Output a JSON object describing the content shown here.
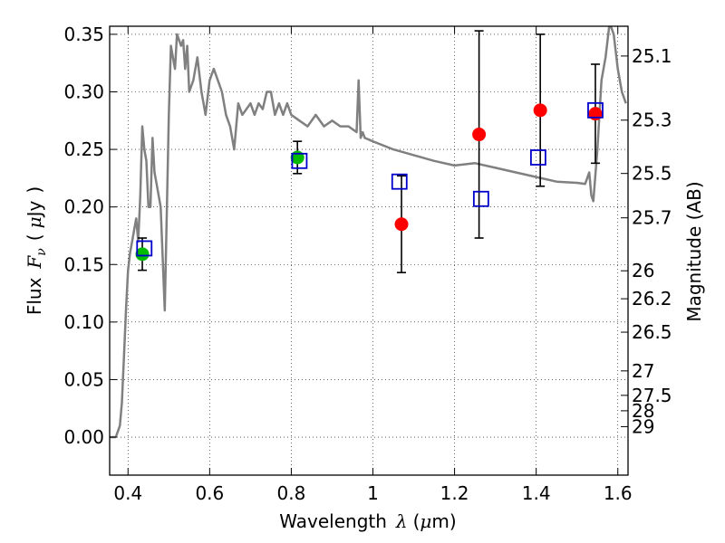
{
  "chart_data": {
    "type": "scatter",
    "xlabel": {
      "text": "Wavelength",
      "symbol": "λ",
      "unit_open": "(",
      "unit_mu": "μ",
      "unit_rest": "m)"
    },
    "ylabel": {
      "text": "Flux",
      "symbol": "F",
      "subscript": "ν",
      "unit_open": "(",
      "unit_mu": "μ",
      "unit_rest": "Jy",
      "unit_close": ")"
    },
    "y2label": "Magnitude (AB)",
    "xlim": [
      0.355,
      1.625
    ],
    "ylim": [
      -0.033,
      0.357
    ],
    "grid": true,
    "x_ticks": [
      {
        "v": 0.4,
        "label": "0.4"
      },
      {
        "v": 0.6,
        "label": "0.6"
      },
      {
        "v": 0.8,
        "label": "0.8"
      },
      {
        "v": 1.0,
        "label": "1"
      },
      {
        "v": 1.2,
        "label": "1.2"
      },
      {
        "v": 1.4,
        "label": "1.4"
      },
      {
        "v": 1.6,
        "label": "1.6"
      }
    ],
    "y_ticks": [
      {
        "v": 0.0,
        "label": "0.00"
      },
      {
        "v": 0.05,
        "label": "0.05"
      },
      {
        "v": 0.1,
        "label": "0.10"
      },
      {
        "v": 0.15,
        "label": "0.15"
      },
      {
        "v": 0.2,
        "label": "0.20"
      },
      {
        "v": 0.25,
        "label": "0.25"
      },
      {
        "v": 0.3,
        "label": "0.30"
      },
      {
        "v": 0.35,
        "label": "0.35"
      }
    ],
    "y2_ticks": [
      {
        "mag": 25.1,
        "label": "25.1"
      },
      {
        "mag": 25.3,
        "label": "25.3"
      },
      {
        "mag": 25.5,
        "label": "25.5"
      },
      {
        "mag": 25.7,
        "label": "25.7"
      },
      {
        "mag": 26,
        "label": "26"
      },
      {
        "mag": 26.2,
        "label": "26.2"
      },
      {
        "mag": 26.5,
        "label": "26.5"
      },
      {
        "mag": 27,
        "label": "27"
      },
      {
        "mag": 27.5,
        "label": "27.5"
      },
      {
        "mag": 28,
        "label": "28"
      },
      {
        "mag": 29,
        "label": "29"
      }
    ],
    "colors": {
      "model": "#808080",
      "measured": "#ff0000",
      "measured_alt": "#00bb00",
      "synthetic": "#0000cc",
      "errorbar": "#000000"
    },
    "model_spectrum": {
      "x": [
        0.37,
        0.38,
        0.385,
        0.39,
        0.395,
        0.4,
        0.405,
        0.41,
        0.415,
        0.42,
        0.425,
        0.43,
        0.435,
        0.44,
        0.445,
        0.45,
        0.455,
        0.46,
        0.465,
        0.47,
        0.48,
        0.49,
        0.5,
        0.505,
        0.51,
        0.515,
        0.52,
        0.53,
        0.535,
        0.54,
        0.545,
        0.55,
        0.56,
        0.57,
        0.58,
        0.585,
        0.59,
        0.6,
        0.61,
        0.62,
        0.63,
        0.64,
        0.65,
        0.66,
        0.67,
        0.68,
        0.69,
        0.7,
        0.71,
        0.72,
        0.73,
        0.74,
        0.75,
        0.76,
        0.77,
        0.78,
        0.79,
        0.8,
        0.82,
        0.84,
        0.86,
        0.88,
        0.9,
        0.92,
        0.94,
        0.96,
        0.965,
        0.97,
        0.975,
        0.98,
        1.0,
        1.05,
        1.1,
        1.15,
        1.2,
        1.25,
        1.3,
        1.35,
        1.4,
        1.45,
        1.5,
        1.52,
        1.53,
        1.535,
        1.54,
        1.55,
        1.56,
        1.57,
        1.58,
        1.59,
        1.6,
        1.61,
        1.62
      ],
      "y": [
        0.0,
        0.01,
        0.03,
        0.07,
        0.11,
        0.145,
        0.16,
        0.17,
        0.18,
        0.19,
        0.17,
        0.21,
        0.27,
        0.25,
        0.24,
        0.2,
        0.2,
        0.26,
        0.23,
        0.22,
        0.2,
        0.11,
        0.28,
        0.34,
        0.33,
        0.32,
        0.35,
        0.34,
        0.345,
        0.32,
        0.34,
        0.3,
        0.31,
        0.33,
        0.3,
        0.29,
        0.28,
        0.31,
        0.32,
        0.31,
        0.3,
        0.28,
        0.27,
        0.25,
        0.29,
        0.28,
        0.285,
        0.29,
        0.28,
        0.29,
        0.285,
        0.3,
        0.3,
        0.28,
        0.29,
        0.28,
        0.29,
        0.28,
        0.275,
        0.27,
        0.28,
        0.27,
        0.275,
        0.27,
        0.27,
        0.265,
        0.31,
        0.26,
        0.265,
        0.26,
        0.257,
        0.25,
        0.245,
        0.24,
        0.236,
        0.238,
        0.234,
        0.23,
        0.226,
        0.222,
        0.221,
        0.22,
        0.23,
        0.21,
        0.205,
        0.25,
        0.31,
        0.33,
        0.36,
        0.35,
        0.32,
        0.3,
        0.29
      ]
    },
    "series": [
      {
        "marker": "circle",
        "color": "#ff0000",
        "points": [
          {
            "x": 1.07,
            "y": 0.185,
            "err": 0.042
          },
          {
            "x": 1.26,
            "y": 0.263,
            "err": 0.09
          },
          {
            "x": 1.41,
            "y": 0.284,
            "err": 0.066
          },
          {
            "x": 1.545,
            "y": 0.281,
            "err": 0.043
          }
        ]
      },
      {
        "marker": "circle",
        "color": "#00bb00",
        "points": [
          {
            "x": 0.435,
            "y": 0.159,
            "err": 0.014
          },
          {
            "x": 0.815,
            "y": 0.243,
            "err": 0.014
          }
        ]
      },
      {
        "marker": "square",
        "color": "#0000cc",
        "points": [
          {
            "x": 0.44,
            "y": 0.164
          },
          {
            "x": 0.82,
            "y": 0.24
          },
          {
            "x": 1.065,
            "y": 0.222
          },
          {
            "x": 1.265,
            "y": 0.207
          },
          {
            "x": 1.405,
            "y": 0.243
          },
          {
            "x": 1.545,
            "y": 0.284
          }
        ]
      }
    ]
  }
}
